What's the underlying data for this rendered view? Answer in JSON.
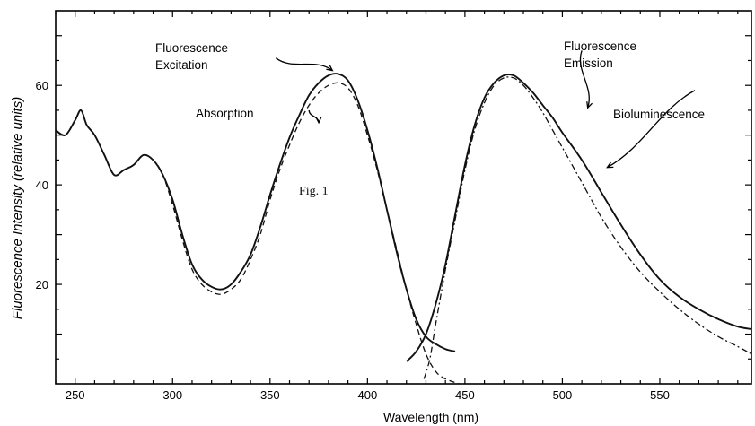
{
  "chart_data": {
    "type": "line",
    "xlabel": "Wavelength (nm)",
    "ylabel": "Fluorescence Intensity (relative units)",
    "xlim": [
      240,
      597
    ],
    "ylim": [
      0,
      75
    ],
    "x_ticks": [
      250,
      300,
      350,
      400,
      450,
      500,
      550
    ],
    "y_ticks": [
      20,
      40,
      60
    ],
    "figure_label": "Fig. 1",
    "annotations": [
      {
        "id": "exc1",
        "text": "Fluorescence",
        "series": "Fluorescence Excitation"
      },
      {
        "id": "exc2",
        "text": "Excitation",
        "series": "Fluorescence Excitation"
      },
      {
        "id": "abs",
        "text": "Absorption",
        "series": "Absorption"
      },
      {
        "id": "em1",
        "text": "Fluorescence",
        "series": "Fluorescence Emission"
      },
      {
        "id": "em2",
        "text": "Emission",
        "series": "Fluorescence Emission"
      },
      {
        "id": "bio",
        "text": "Bioluminescence",
        "series": "Bioluminescence"
      }
    ],
    "arrows": [
      {
        "from": [
          353,
          65.5
        ],
        "to": [
          382,
          63
        ]
      },
      {
        "from": [
          370,
          55
        ],
        "to": [
          375,
          52.5
        ]
      },
      {
        "from": [
          510,
          67
        ],
        "to": [
          513,
          55.5
        ]
      },
      {
        "from": [
          568,
          59
        ],
        "to": [
          523,
          43.5
        ]
      }
    ],
    "series": [
      {
        "name": "Absorption",
        "style": "dashed",
        "x": [
          240,
          245,
          250,
          253,
          256,
          260,
          265,
          270,
          275,
          280,
          285,
          290,
          295,
          300,
          305,
          310,
          315,
          320,
          325,
          330,
          335,
          340,
          345,
          350,
          355,
          360,
          365,
          370,
          375,
          380,
          385,
          390,
          395,
          400,
          405,
          410,
          415,
          420,
          425,
          430,
          435,
          440,
          447
        ],
        "y": [
          51,
          50,
          53,
          55,
          52,
          50,
          46,
          42,
          43,
          44,
          46,
          45,
          42,
          36,
          29,
          23,
          20,
          18.5,
          18,
          19,
          21,
          25,
          30,
          37,
          43,
          48,
          52.5,
          56,
          58.5,
          60,
          60.5,
          59.5,
          56,
          50,
          43,
          35,
          27,
          19,
          12,
          6,
          2.5,
          1,
          0
        ]
      },
      {
        "name": "Fluorescence Excitation",
        "style": "solid",
        "x": [
          240,
          245,
          250,
          253,
          256,
          260,
          265,
          270,
          275,
          280,
          285,
          290,
          295,
          300,
          305,
          310,
          315,
          320,
          325,
          330,
          335,
          340,
          345,
          350,
          355,
          360,
          365,
          370,
          375,
          380,
          385,
          390,
          395,
          400,
          405,
          410,
          415,
          420,
          425,
          430,
          435,
          440,
          445
        ],
        "y": [
          51,
          50,
          53,
          55,
          52,
          50,
          46,
          42,
          43,
          44,
          46,
          45,
          42,
          37,
          30,
          24,
          21,
          19.5,
          19,
          20,
          22.5,
          26,
          31.5,
          38,
          44,
          49.5,
          54,
          58,
          60.5,
          62,
          62.3,
          61,
          57,
          51,
          43.5,
          35,
          26.5,
          19,
          13,
          9.5,
          8,
          7,
          6.5
        ]
      },
      {
        "name": "Fluorescence Emission",
        "style": "solid",
        "x": [
          420,
          425,
          430,
          435,
          440,
          445,
          450,
          455,
          460,
          465,
          470,
          475,
          480,
          485,
          490,
          495,
          500,
          510,
          520,
          530,
          540,
          550,
          560,
          570,
          580,
          590,
          597
        ],
        "y": [
          4.5,
          6.5,
          10,
          16,
          24,
          34,
          44,
          52,
          57.5,
          60.5,
          62,
          62,
          60.5,
          58.5,
          56,
          53.5,
          50.5,
          45,
          38.5,
          32,
          26,
          21,
          17.5,
          15,
          13,
          11.5,
          11
        ]
      },
      {
        "name": "Bioluminescence",
        "style": "dash-dot",
        "x": [
          429,
          432,
          435,
          440,
          445,
          450,
          455,
          460,
          465,
          470,
          475,
          480,
          485,
          490,
          495,
          500,
          510,
          520,
          530,
          540,
          550,
          560,
          570,
          580,
          590,
          597
        ],
        "y": [
          1,
          5,
          12,
          23,
          33,
          43,
          51,
          56.5,
          60,
          61.5,
          61.5,
          60,
          57.5,
          54.5,
          51,
          47.5,
          40.5,
          33.5,
          27.5,
          22.5,
          18.5,
          15,
          12,
          9.5,
          7.5,
          6
        ]
      }
    ]
  }
}
